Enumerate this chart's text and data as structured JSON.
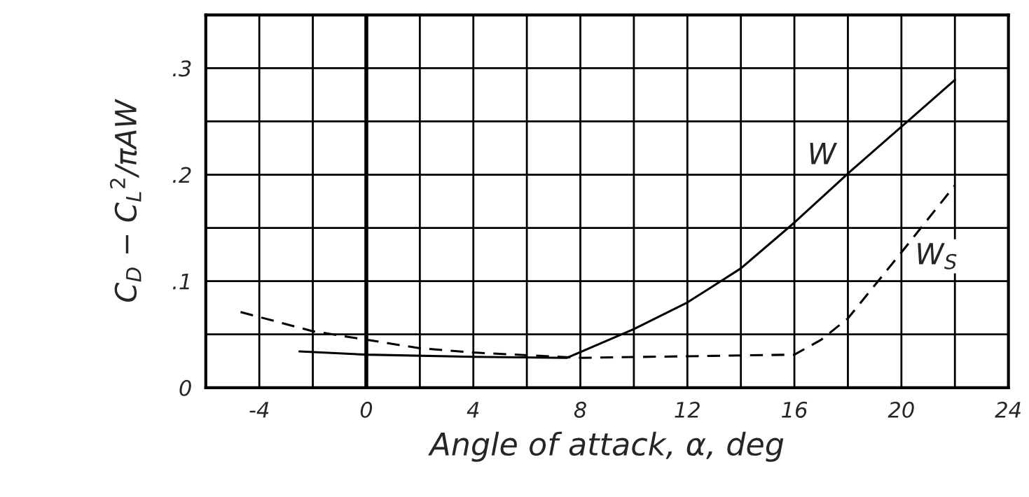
{
  "chart_data": {
    "type": "line",
    "xlabel": "Angle of attack, α, deg",
    "ylabel": "C$_{D}$ − C$_{L}$$^{2}$/πAW",
    "series": [
      {
        "name": "W",
        "color": "#000000",
        "line_style": "solid",
        "x": [
          -2.5,
          0,
          4,
          7.5,
          10,
          12,
          14,
          16,
          18,
          20,
          22
        ],
        "values": [
          0.034,
          0.031,
          0.029,
          0.028,
          0.055,
          0.08,
          0.112,
          0.155,
          0.201,
          0.245,
          0.289
        ]
      },
      {
        "name": "W$_{S}$",
        "color": "#000000",
        "line_style": "dashed",
        "x": [
          -4.7,
          -2,
          0,
          2,
          4,
          8,
          16,
          17,
          18,
          20,
          22
        ],
        "values": [
          0.071,
          0.053,
          0.045,
          0.037,
          0.033,
          0.028,
          0.031,
          0.045,
          0.065,
          0.127,
          0.19
        ]
      }
    ],
    "xlim": [
      -6,
      24
    ],
    "ylim": [
      0,
      0.35
    ],
    "xticks": [
      {
        "value": -6,
        "label": null
      },
      -4,
      {
        "value": -2,
        "label": null
      },
      0,
      {
        "value": 2,
        "label": null
      },
      4,
      {
        "value": 6,
        "label": null
      },
      8,
      {
        "value": 10,
        "label": null
      },
      12,
      {
        "value": 14,
        "label": null
      },
      16,
      {
        "value": 18,
        "label": null
      },
      20,
      {
        "value": 22,
        "label": null
      },
      24
    ],
    "yticks": [
      0,
      {
        "value": 0.05,
        "label": null
      },
      {
        "value": 0.1,
        "label": ".1"
      },
      {
        "value": 0.15,
        "label": null
      },
      {
        "value": 0.2,
        "label": ".2"
      },
      {
        "value": 0.25,
        "label": null
      },
      {
        "value": 0.3,
        "label": ".3"
      },
      {
        "value": 0.35,
        "label": null
      }
    ],
    "ref_lines": [
      {
        "axis": "x",
        "value": 0,
        "color": "#000000"
      }
    ],
    "grid": true,
    "legend": false,
    "marker": "none"
  }
}
